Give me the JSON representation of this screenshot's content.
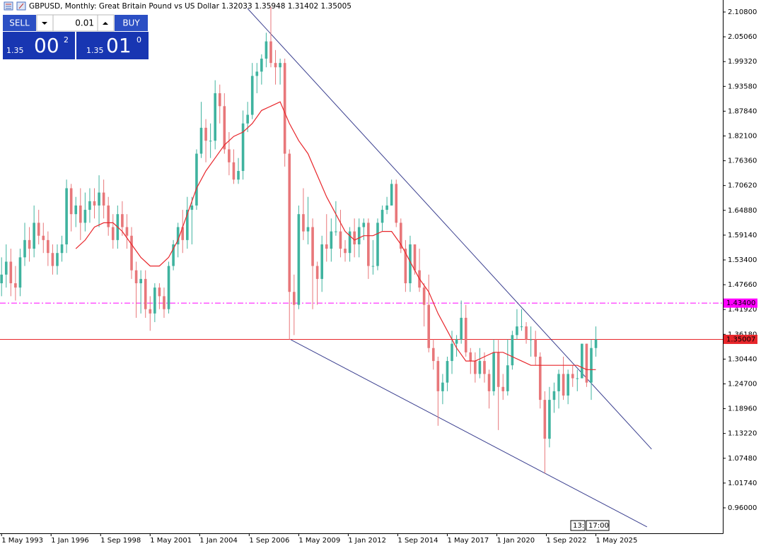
{
  "ui": {
    "header": "GBPUSD, Monthly:  Great Britain Pound vs US Dollar  1.32033 1.35948 1.31402 1.35005",
    "sell": "SELL",
    "buy": "BUY",
    "lot": "0.01",
    "sell_price": [
      "1.35",
      "00",
      "2"
    ],
    "buy_price": [
      "1.35",
      "01",
      "0"
    ],
    "time_labels": [
      "13:",
      "17:00"
    ]
  },
  "chart_data": {
    "type": "candlestick",
    "up_color": "#3fb39f",
    "down_color": "#e8777a",
    "xlim": [
      "1993-04",
      "2032-03"
    ],
    "ylim": [
      0.9011,
      2.1358
    ],
    "xticks": [
      {
        "value": "1993-05",
        "label": "1 May 1993"
      },
      {
        "value": "1996-01",
        "label": "1 Jan 1996"
      },
      {
        "value": "1998-09",
        "label": "1 Sep 1998"
      },
      {
        "value": "2001-05",
        "label": "1 May 2001"
      },
      {
        "value": "2004-01",
        "label": "1 Jan 2004"
      },
      {
        "value": "2006-09",
        "label": "1 Sep 2006"
      },
      {
        "value": "2009-05",
        "label": "1 May 2009"
      },
      {
        "value": "2012-01",
        "label": "1 Jan 2012"
      },
      {
        "value": "2014-09",
        "label": "1 Sep 2014"
      },
      {
        "value": "2017-05",
        "label": "1 May 2017"
      },
      {
        "value": "2020-01",
        "label": "1 Jan 2020"
      },
      {
        "value": "2022-09",
        "label": "1 Sep 2022"
      },
      {
        "value": "2025-05",
        "label": "1 May 2025"
      }
    ],
    "yticks": [
      {
        "value": 2.108,
        "label": "2.10800"
      },
      {
        "value": 2.0506,
        "label": "2.05060"
      },
      {
        "value": 1.9932,
        "label": "1.99320"
      },
      {
        "value": 1.9358,
        "label": "1.93580"
      },
      {
        "value": 1.8784,
        "label": "1.87840"
      },
      {
        "value": 1.821,
        "label": "1.82100"
      },
      {
        "value": 1.7636,
        "label": "1.76360"
      },
      {
        "value": 1.7062,
        "label": "1.70620"
      },
      {
        "value": 1.6488,
        "label": "1.64880"
      },
      {
        "value": 1.5914,
        "label": "1.59140"
      },
      {
        "value": 1.534,
        "label": "1.53400"
      },
      {
        "value": 1.4766,
        "label": "1.47660"
      },
      {
        "value": 1.4192,
        "label": "1.41920"
      },
      {
        "value": 1.3618,
        "label": "1.36180"
      },
      {
        "value": 1.3044,
        "label": "1.30440"
      },
      {
        "value": 1.247,
        "label": "1.24700"
      },
      {
        "value": 1.1896,
        "label": "1.18960"
      },
      {
        "value": 1.1322,
        "label": "1.13220"
      },
      {
        "value": 1.0748,
        "label": "1.07480"
      },
      {
        "value": 1.0174,
        "label": "1.01740"
      },
      {
        "value": 0.96,
        "label": "0.96000"
      }
    ],
    "x": [
      "1993-05",
      "1993-08",
      "1993-11",
      "1994-02",
      "1994-05",
      "1994-08",
      "1994-11",
      "1995-02",
      "1995-05",
      "1995-08",
      "1995-11",
      "1996-02",
      "1996-05",
      "1996-08",
      "1996-11",
      "1997-02",
      "1997-05",
      "1997-08",
      "1997-11",
      "1998-02",
      "1998-05",
      "1998-08",
      "1998-11",
      "1999-02",
      "1999-05",
      "1999-08",
      "1999-11",
      "2000-02",
      "2000-05",
      "2000-08",
      "2000-11",
      "2001-02",
      "2001-05",
      "2001-08",
      "2001-11",
      "2002-02",
      "2002-05",
      "2002-08",
      "2002-11",
      "2003-02",
      "2003-05",
      "2003-08",
      "2003-11",
      "2004-02",
      "2004-05",
      "2004-08",
      "2004-11",
      "2005-02",
      "2005-05",
      "2005-08",
      "2005-11",
      "2006-02",
      "2006-05",
      "2006-08",
      "2006-11",
      "2007-02",
      "2007-05",
      "2007-08",
      "2007-11",
      "2008-02",
      "2008-05",
      "2008-08",
      "2008-11",
      "2009-02",
      "2009-05",
      "2009-08",
      "2009-11",
      "2010-02",
      "2010-05",
      "2010-08",
      "2010-11",
      "2011-02",
      "2011-05",
      "2011-08",
      "2011-11",
      "2012-02",
      "2012-05",
      "2012-08",
      "2012-11",
      "2013-02",
      "2013-05",
      "2013-08",
      "2013-11",
      "2014-02",
      "2014-05",
      "2014-08",
      "2014-11",
      "2015-02",
      "2015-05",
      "2015-08",
      "2015-11",
      "2016-02",
      "2016-05",
      "2016-08",
      "2016-11",
      "2017-02",
      "2017-05",
      "2017-08",
      "2017-11",
      "2018-02",
      "2018-05",
      "2018-08",
      "2018-11",
      "2019-02",
      "2019-05",
      "2019-08",
      "2019-11",
      "2020-02",
      "2020-05",
      "2020-08",
      "2020-11",
      "2021-02",
      "2021-05",
      "2021-08",
      "2021-11",
      "2022-02",
      "2022-05",
      "2022-08",
      "2022-11",
      "2023-02",
      "2023-05",
      "2023-08",
      "2023-11",
      "2024-02",
      "2024-05",
      "2024-08",
      "2024-11",
      "2025-02",
      "2025-05"
    ],
    "open": [
      1.48,
      1.5,
      1.53,
      1.48,
      1.47,
      1.54,
      1.58,
      1.56,
      1.62,
      1.59,
      1.58,
      1.55,
      1.52,
      1.55,
      1.57,
      1.7,
      1.64,
      1.66,
      1.62,
      1.65,
      1.67,
      1.66,
      1.69,
      1.66,
      1.61,
      1.58,
      1.64,
      1.61,
      1.59,
      1.51,
      1.48,
      1.49,
      1.42,
      1.41,
      1.47,
      1.45,
      1.42,
      1.52,
      1.57,
      1.61,
      1.58,
      1.65,
      1.66,
      1.78,
      1.84,
      1.81,
      1.81,
      1.92,
      1.89,
      1.79,
      1.76,
      1.72,
      1.74,
      1.85,
      1.87,
      1.96,
      1.97,
      2.0,
      2.04,
      1.99,
      1.98,
      1.99,
      1.78,
      1.46,
      1.43,
      1.64,
      1.6,
      1.61,
      1.52,
      1.49,
      1.57,
      1.56,
      1.6,
      1.6,
      1.56,
      1.55,
      1.6,
      1.57,
      1.61,
      1.62,
      1.52,
      1.52,
      1.62,
      1.65,
      1.66,
      1.71,
      1.62,
      1.56,
      1.48,
      1.57,
      1.51,
      1.47,
      1.43,
      1.33,
      1.3,
      1.23,
      1.25,
      1.3,
      1.34,
      1.35,
      1.4,
      1.32,
      1.3,
      1.27,
      1.3,
      1.27,
      1.23,
      1.32,
      1.24,
      1.23,
      1.29,
      1.36,
      1.38,
      1.38,
      1.35,
      1.35,
      1.31,
      1.21,
      1.12,
      1.21,
      1.23,
      1.27,
      1.22,
      1.27,
      1.26,
      1.26,
      1.34,
      1.25,
      1.33
    ],
    "high": [
      1.54,
      1.57,
      1.56,
      1.52,
      1.56,
      1.62,
      1.61,
      1.66,
      1.65,
      1.62,
      1.6,
      1.57,
      1.57,
      1.59,
      1.72,
      1.71,
      1.68,
      1.7,
      1.69,
      1.7,
      1.7,
      1.73,
      1.72,
      1.68,
      1.64,
      1.66,
      1.67,
      1.64,
      1.61,
      1.53,
      1.51,
      1.51,
      1.45,
      1.48,
      1.48,
      1.47,
      1.53,
      1.58,
      1.62,
      1.65,
      1.68,
      1.68,
      1.79,
      1.9,
      1.86,
      1.85,
      1.95,
      1.94,
      1.92,
      1.83,
      1.79,
      1.77,
      1.88,
      1.9,
      1.99,
      1.99,
      2.01,
      2.06,
      2.12,
      2.02,
      2.0,
      2.0,
      1.79,
      1.5,
      1.66,
      1.7,
      1.68,
      1.63,
      1.53,
      1.59,
      1.64,
      1.63,
      1.67,
      1.65,
      1.58,
      1.61,
      1.63,
      1.63,
      1.63,
      1.63,
      1.58,
      1.63,
      1.66,
      1.68,
      1.72,
      1.72,
      1.63,
      1.58,
      1.59,
      1.57,
      1.56,
      1.48,
      1.5,
      1.35,
      1.31,
      1.27,
      1.31,
      1.37,
      1.36,
      1.44,
      1.43,
      1.33,
      1.32,
      1.33,
      1.32,
      1.28,
      1.35,
      1.35,
      1.27,
      1.35,
      1.37,
      1.42,
      1.42,
      1.39,
      1.38,
      1.37,
      1.32,
      1.23,
      1.24,
      1.25,
      1.28,
      1.31,
      1.28,
      1.29,
      1.28,
      1.34,
      1.34,
      1.35,
      1.38
    ],
    "low": [
      1.45,
      1.47,
      1.45,
      1.44,
      1.45,
      1.52,
      1.53,
      1.54,
      1.57,
      1.55,
      1.52,
      1.5,
      1.5,
      1.53,
      1.55,
      1.6,
      1.61,
      1.58,
      1.6,
      1.62,
      1.63,
      1.61,
      1.63,
      1.59,
      1.56,
      1.56,
      1.59,
      1.56,
      1.49,
      1.4,
      1.41,
      1.4,
      1.37,
      1.39,
      1.42,
      1.4,
      1.41,
      1.51,
      1.54,
      1.55,
      1.56,
      1.57,
      1.65,
      1.77,
      1.76,
      1.77,
      1.79,
      1.85,
      1.78,
      1.73,
      1.71,
      1.71,
      1.72,
      1.83,
      1.86,
      1.92,
      1.94,
      1.98,
      1.98,
      1.94,
      1.94,
      1.75,
      1.35,
      1.36,
      1.42,
      1.58,
      1.57,
      1.42,
      1.43,
      1.46,
      1.53,
      1.53,
      1.59,
      1.54,
      1.53,
      1.53,
      1.54,
      1.54,
      1.58,
      1.49,
      1.5,
      1.51,
      1.6,
      1.64,
      1.66,
      1.61,
      1.55,
      1.46,
      1.46,
      1.5,
      1.46,
      1.38,
      1.32,
      1.28,
      1.15,
      1.2,
      1.23,
      1.27,
      1.31,
      1.34,
      1.31,
      1.27,
      1.25,
      1.26,
      1.25,
      1.19,
      1.22,
      1.14,
      1.21,
      1.22,
      1.28,
      1.35,
      1.37,
      1.34,
      1.31,
      1.29,
      1.19,
      1.04,
      1.1,
      1.18,
      1.19,
      1.21,
      1.2,
      1.24,
      1.23,
      1.26,
      1.24,
      1.21,
      1.31
    ],
    "close": [
      1.5,
      1.53,
      1.48,
      1.47,
      1.54,
      1.58,
      1.56,
      1.62,
      1.59,
      1.58,
      1.55,
      1.52,
      1.55,
      1.57,
      1.7,
      1.64,
      1.66,
      1.62,
      1.65,
      1.67,
      1.66,
      1.69,
      1.66,
      1.61,
      1.58,
      1.64,
      1.61,
      1.59,
      1.51,
      1.48,
      1.49,
      1.42,
      1.41,
      1.47,
      1.45,
      1.42,
      1.52,
      1.57,
      1.61,
      1.58,
      1.65,
      1.66,
      1.78,
      1.84,
      1.81,
      1.81,
      1.92,
      1.89,
      1.79,
      1.76,
      1.72,
      1.74,
      1.85,
      1.87,
      1.96,
      1.97,
      2.0,
      2.04,
      1.99,
      1.98,
      1.99,
      1.78,
      1.46,
      1.43,
      1.64,
      1.6,
      1.61,
      1.52,
      1.49,
      1.57,
      1.56,
      1.6,
      1.6,
      1.56,
      1.55,
      1.6,
      1.57,
      1.61,
      1.62,
      1.52,
      1.52,
      1.62,
      1.65,
      1.66,
      1.71,
      1.62,
      1.56,
      1.48,
      1.57,
      1.51,
      1.47,
      1.43,
      1.33,
      1.3,
      1.23,
      1.25,
      1.3,
      1.34,
      1.35,
      1.4,
      1.32,
      1.3,
      1.27,
      1.3,
      1.27,
      1.23,
      1.32,
      1.24,
      1.23,
      1.29,
      1.36,
      1.38,
      1.38,
      1.35,
      1.35,
      1.31,
      1.21,
      1.12,
      1.21,
      1.23,
      1.27,
      1.22,
      1.27,
      1.26,
      1.26,
      1.34,
      1.25,
      1.33,
      1.35
    ],
    "ma": {
      "color": "#e8262b",
      "x": [
        "1997-05",
        "1997-11",
        "1998-05",
        "1998-11",
        "1999-05",
        "1999-11",
        "2000-05",
        "2000-11",
        "2001-05",
        "2001-11",
        "2002-05",
        "2002-11",
        "2003-05",
        "2003-11",
        "2004-05",
        "2004-11",
        "2005-05",
        "2005-11",
        "2006-05",
        "2006-11",
        "2007-05",
        "2007-11",
        "2008-05",
        "2008-11",
        "2009-05",
        "2009-11",
        "2010-05",
        "2010-11",
        "2011-05",
        "2011-11",
        "2012-05",
        "2012-11",
        "2013-05",
        "2013-11",
        "2014-05",
        "2014-11",
        "2015-05",
        "2015-11",
        "2016-05",
        "2016-11",
        "2017-05",
        "2017-11",
        "2018-05",
        "2018-11",
        "2019-05",
        "2019-11",
        "2020-05",
        "2020-11",
        "2021-05",
        "2021-11",
        "2022-05",
        "2022-11",
        "2023-05",
        "2023-11",
        "2024-05",
        "2024-11",
        "2025-05"
      ],
      "values": [
        1.56,
        1.58,
        1.61,
        1.62,
        1.62,
        1.6,
        1.57,
        1.54,
        1.52,
        1.52,
        1.54,
        1.58,
        1.64,
        1.7,
        1.74,
        1.77,
        1.8,
        1.82,
        1.83,
        1.85,
        1.88,
        1.89,
        1.9,
        1.85,
        1.81,
        1.78,
        1.73,
        1.68,
        1.64,
        1.6,
        1.58,
        1.59,
        1.59,
        1.6,
        1.6,
        1.57,
        1.53,
        1.49,
        1.46,
        1.41,
        1.37,
        1.33,
        1.3,
        1.3,
        1.31,
        1.32,
        1.32,
        1.31,
        1.3,
        1.29,
        1.29,
        1.29,
        1.29,
        1.29,
        1.29,
        1.28,
        1.28
      ]
    },
    "trendlines": [
      {
        "color": "#3a3f8f",
        "x": [
          "2006-08",
          "2028-05"
        ],
        "values": [
          2.116,
          1.096
        ]
      },
      {
        "color": "#3a3f8f",
        "x": [
          "2008-12",
          "2028-02"
        ],
        "values": [
          1.349,
          0.916
        ]
      }
    ],
    "levels": [
      {
        "value": 1.434,
        "label": "1.43400",
        "color": "#ff00ff",
        "dash": "8 3 2 3"
      },
      {
        "value": 1.35007,
        "label": "1.35007",
        "color": "#e8262b",
        "dash": "none"
      }
    ]
  }
}
